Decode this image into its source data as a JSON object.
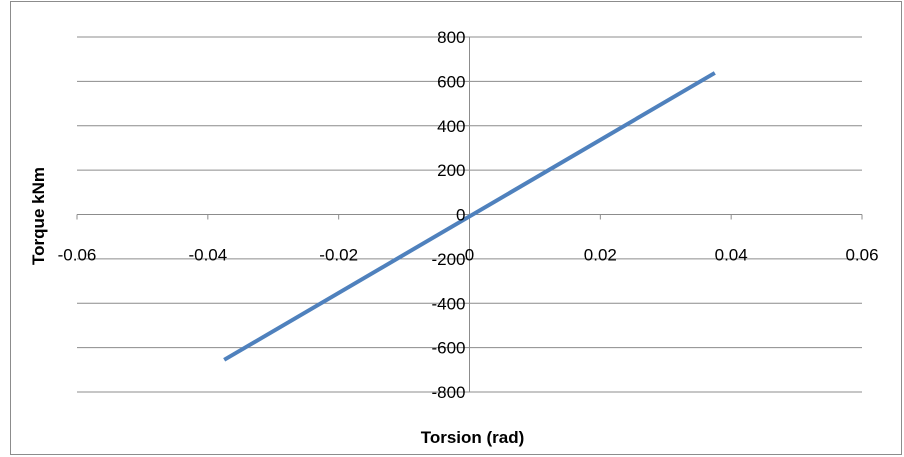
{
  "chart_data": {
    "type": "line",
    "title": "",
    "xlabel": "Torsion (rad)",
    "ylabel": "Torque kNm",
    "xlim": [
      -0.06,
      0.06
    ],
    "ylim": [
      -800,
      800
    ],
    "x_ticks": [
      -0.06,
      -0.04,
      -0.02,
      0,
      0.02,
      0.04,
      0.06
    ],
    "x_tick_labels": [
      "-0.06",
      "-0.04",
      "-0.02",
      "0",
      "0.02",
      "0.04",
      "0.06"
    ],
    "y_ticks": [
      800,
      600,
      400,
      200,
      0,
      -200,
      -400,
      -600,
      -800
    ],
    "y_tick_labels": [
      "800",
      "600",
      "400",
      "200",
      "0",
      "-200",
      "-400",
      "-600",
      "-800"
    ],
    "grid": true,
    "legend": "none",
    "series": [
      {
        "x": [
          -0.0375,
          0.0375
        ],
        "y": [
          -655,
          638
        ]
      }
    ],
    "colors": {
      "line": "#4f81bd",
      "grid": "#8c8c8c",
      "axis": "#8c8c8c"
    }
  }
}
